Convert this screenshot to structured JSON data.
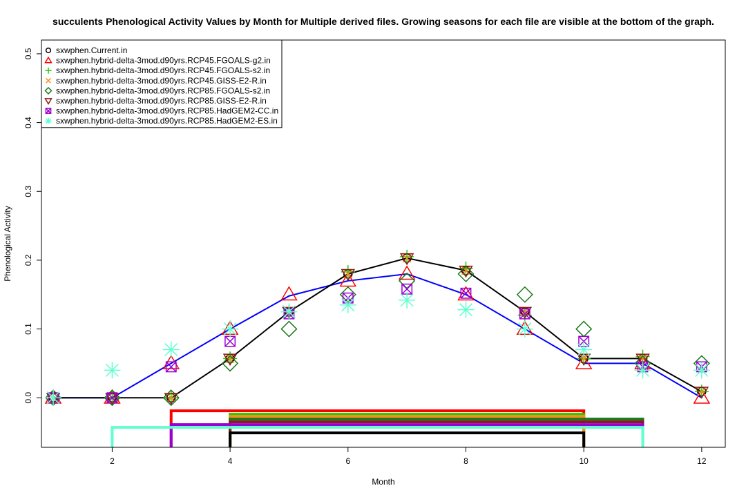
{
  "chart_data": {
    "type": "line",
    "title": "succulents Phenological Activity Values by Month for Multiple derived files. Growing seasons for each file are visible at the bottom of the graph.",
    "xlabel": "Month",
    "ylabel": "Phenological Activity",
    "xlim": [
      0.8,
      12.4
    ],
    "ylim": [
      -0.072,
      0.52
    ],
    "x_ticks": [
      2,
      4,
      6,
      8,
      10,
      12
    ],
    "y_ticks": [
      0.0,
      0.1,
      0.2,
      0.3,
      0.4,
      0.5
    ],
    "legend_position": "top-left",
    "months": [
      1,
      2,
      3,
      4,
      5,
      6,
      7,
      8,
      9,
      10,
      11,
      12
    ],
    "series": [
      {
        "name": "sxwphen.Current.in",
        "color": "#000000",
        "symbol": "circle",
        "line": true,
        "values": [
          0.0,
          0.0,
          0.0,
          0.057,
          0.125,
          0.18,
          0.203,
          0.185,
          0.125,
          0.057,
          0.057,
          0.009
        ]
      },
      {
        "name": "sxwphen.hybrid-delta-3mod.d90yrs.RCP45.FGOALS-g2.in",
        "color": "#ff0000",
        "symbol": "triangle-up",
        "line": false,
        "values": [
          0.0,
          0.0,
          0.05,
          0.1,
          0.15,
          0.17,
          0.18,
          0.15,
          0.1,
          0.05,
          0.05,
          0.0
        ]
      },
      {
        "name": "sxwphen.hybrid-delta-3mod.d90yrs.RCP45.FGOALS-s2.in",
        "color": "#22cc00",
        "symbol": "plus",
        "line": false,
        "values": [
          0.0,
          0.0,
          0.0,
          0.057,
          0.125,
          0.183,
          0.205,
          0.188,
          0.12,
          0.057,
          0.06,
          0.009
        ]
      },
      {
        "name": "sxwphen.hybrid-delta-3mod.d90yrs.RCP45.GISS-E2-R.in",
        "color": "#ff8c1a",
        "symbol": "x",
        "line": false,
        "values": [
          0.0,
          0.0,
          0.0,
          0.057,
          0.125,
          0.18,
          0.203,
          0.185,
          0.125,
          0.057,
          0.057,
          0.009
        ]
      },
      {
        "name": "sxwphen.hybrid-delta-3mod.d90yrs.RCP85.FGOALS-s2.in",
        "color": "#1a7a1a",
        "symbol": "diamond",
        "line": false,
        "values": [
          0.0,
          0.0,
          0.0,
          0.05,
          0.1,
          0.15,
          0.17,
          0.18,
          0.15,
          0.1,
          0.05,
          0.05
        ]
      },
      {
        "name": "sxwphen.hybrid-delta-3mod.d90yrs.RCP85.GISS-E2-R.in",
        "color": "#8b1a1a",
        "symbol": "triangle-down",
        "line": false,
        "values": [
          0.0,
          0.0,
          0.0,
          0.057,
          0.125,
          0.18,
          0.203,
          0.185,
          0.125,
          0.057,
          0.057,
          0.009
        ]
      },
      {
        "name": "sxwphen.hybrid-delta-3mod.d90yrs.RCP85.HadGEM2-CC.in",
        "color": "#9b00d3",
        "symbol": "box-x",
        "line": false,
        "values": [
          0.0,
          0.0,
          0.045,
          0.082,
          0.122,
          0.145,
          0.158,
          0.152,
          0.122,
          0.082,
          0.045,
          0.045
        ]
      },
      {
        "name": "sxwphen.hybrid-delta-3mod.d90yrs.RCP85.HadGEM2-ES.in",
        "color": "#5fffd0",
        "symbol": "asterisk",
        "line": false,
        "values": [
          0.0,
          0.04,
          0.07,
          0.1,
          0.125,
          0.135,
          0.142,
          0.128,
          0.1,
          0.07,
          0.04,
          0.04
        ]
      }
    ],
    "blue_line": {
      "color": "#0000ff",
      "values": [
        0.0,
        0.0,
        0.05,
        0.1,
        0.148,
        0.17,
        0.18,
        0.15,
        0.1,
        0.05,
        0.05,
        0.0
      ]
    },
    "growing_seasons": [
      {
        "color": "#ff0000",
        "start": 3,
        "end": 10,
        "y": -0.019,
        "floor": -0.072
      },
      {
        "color": "#22cc00",
        "start": 4,
        "end": 10,
        "y": -0.024,
        "floor": -0.072
      },
      {
        "color": "#ff8c1a",
        "start": 4,
        "end": 10,
        "y": -0.027,
        "floor": -0.072
      },
      {
        "color": "#1a7a1a",
        "start": 4,
        "end": 11,
        "y": -0.031,
        "floor": -0.072
      },
      {
        "color": "#8b1a1a",
        "start": 4,
        "end": 11,
        "y": -0.035,
        "floor": -0.072
      },
      {
        "color": "#9b00d3",
        "start": 3,
        "end": 11,
        "y": -0.039,
        "floor": -0.072
      },
      {
        "color": "#5fffd0",
        "start": 2,
        "end": 11,
        "y": -0.043,
        "floor": -0.072
      },
      {
        "color": "#000000",
        "start": 4,
        "end": 10,
        "y": -0.051,
        "floor": -0.072
      }
    ]
  }
}
